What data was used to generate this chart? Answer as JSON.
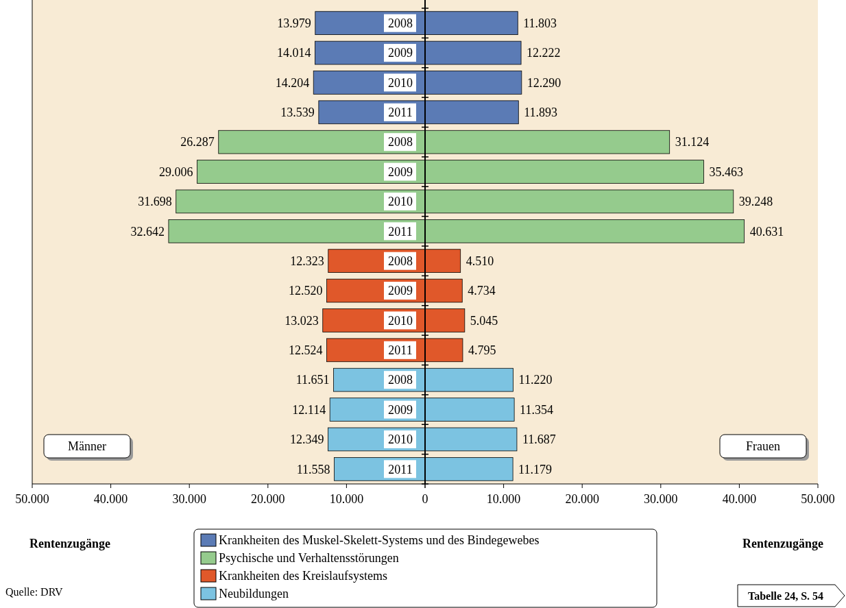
{
  "chart_data": [
    {
      "type": "bar",
      "orientation": "horizontal",
      "stacked": true,
      "xlabel": "Rentenzugänge",
      "categories": [
        "2008",
        "2009",
        "2010",
        "2011",
        "2008",
        "2009",
        "2010",
        "2011",
        "2008",
        "2009",
        "2010",
        "2011",
        "2008",
        "2009",
        "2010",
        "2011"
      ],
      "series": [
        {
          "color": "#5b7bb5",
          "values": [
            13979,
            14014,
            14204,
            13539,
            null,
            null,
            null,
            null,
            null,
            null,
            null,
            null,
            null,
            null,
            null,
            null
          ],
          "value_labels": [
            "13.979",
            "14.014",
            "14.204",
            "13.539",
            null,
            null,
            null,
            null,
            null,
            null,
            null,
            null,
            null,
            null,
            null,
            null
          ]
        },
        {
          "color": "#95cb8d",
          "values": [
            null,
            null,
            null,
            null,
            26287,
            29006,
            31698,
            32642,
            null,
            null,
            null,
            null,
            null,
            null,
            null,
            null
          ],
          "value_labels": [
            null,
            null,
            null,
            null,
            "26.287",
            "29.006",
            "31.698",
            "32.642",
            null,
            null,
            null,
            null,
            null,
            null,
            null,
            null
          ]
        },
        {
          "color": "#e0582a",
          "values": [
            null,
            null,
            null,
            null,
            null,
            null,
            null,
            null,
            12323,
            12520,
            13023,
            12524,
            null,
            null,
            null,
            null
          ],
          "value_labels": [
            null,
            null,
            null,
            null,
            null,
            null,
            null,
            null,
            "12.323",
            "12.520",
            "13.023",
            "12.524",
            null,
            null,
            null,
            null
          ]
        },
        {
          "color": "#7cc3e1",
          "values": [
            null,
            null,
            null,
            null,
            null,
            null,
            null,
            null,
            null,
            null,
            null,
            null,
            11651,
            12114,
            12349,
            11558
          ],
          "value_labels": [
            null,
            null,
            null,
            null,
            null,
            null,
            null,
            null,
            null,
            null,
            null,
            null,
            "11.651",
            "12.114",
            "12.349",
            "11.558"
          ]
        }
      ],
      "xlim": [
        50000,
        0
      ],
      "xticks": [
        {
          "value": 50000,
          "label": "50.000"
        },
        {
          "value": 40000,
          "label": "40.000"
        },
        {
          "value": 30000,
          "label": "30.000"
        },
        {
          "value": 20000,
          "label": "20.000"
        },
        {
          "value": 10000,
          "label": "10.000"
        },
        0
      ],
      "annotations": [
        "Männer",
        "Quelle: DRV"
      ]
    },
    {
      "type": "bar",
      "orientation": "horizontal",
      "stacked": true,
      "xlabel": "Rentenzugänge",
      "categories": [
        null,
        null,
        null,
        null,
        null,
        null,
        null,
        null,
        null,
        null,
        null,
        null,
        null,
        null,
        null,
        null
      ],
      "series": [
        {
          "name": "Krankheiten des Muskel-Skelett-Systems und des Bindegewebes",
          "color": "#5b7bb5",
          "values": [
            11803,
            12222,
            12290,
            11893,
            null,
            null,
            null,
            null,
            null,
            null,
            null,
            null,
            null,
            null,
            null,
            null
          ],
          "value_labels": [
            "11.803",
            "12.222",
            "12.290",
            "11.893",
            null,
            null,
            null,
            null,
            null,
            null,
            null,
            null,
            null,
            null,
            null,
            null
          ]
        },
        {
          "name": "Psychische und Verhaltensstörungen",
          "color": "#95cb8d",
          "values": [
            null,
            null,
            null,
            null,
            31124,
            35463,
            39248,
            40631,
            null,
            null,
            null,
            null,
            null,
            null,
            null,
            null
          ],
          "value_labels": [
            null,
            null,
            null,
            null,
            "31.124",
            "35.463",
            "39.248",
            "40.631",
            null,
            null,
            null,
            null,
            null,
            null,
            null,
            null
          ]
        },
        {
          "name": "Krankheiten des Kreislaufsystems",
          "color": "#e0582a",
          "values": [
            null,
            null,
            null,
            null,
            null,
            null,
            null,
            null,
            4510,
            4734,
            5045,
            4795,
            null,
            null,
            null,
            null
          ],
          "value_labels": [
            null,
            null,
            null,
            null,
            null,
            null,
            null,
            null,
            "4.510",
            "4.734",
            "5.045",
            "4.795",
            null,
            null,
            null,
            null
          ]
        },
        {
          "name": "Neubildungen",
          "color": "#7cc3e1",
          "values": [
            null,
            null,
            null,
            null,
            null,
            null,
            null,
            null,
            null,
            null,
            null,
            null,
            11220,
            11354,
            11687,
            11179
          ],
          "value_labels": [
            null,
            null,
            null,
            null,
            null,
            null,
            null,
            null,
            null,
            null,
            null,
            null,
            "11.220",
            "11.354",
            "11.687",
            "11.179"
          ]
        }
      ],
      "xlim": [
        0,
        50000
      ],
      "xticks": [
        {
          "value": 0,
          "label": null
        },
        {
          "value": 10000,
          "label": "10.000"
        },
        {
          "value": 20000,
          "label": "20.000"
        },
        {
          "value": 30000,
          "label": "30.000"
        },
        {
          "value": 40000,
          "label": "40.000"
        },
        {
          "value": 50000,
          "label": "50.000"
        }
      ],
      "legend": "bottom",
      "annotations": [
        "Frauen",
        "Tabelle 24, S. 54"
      ]
    }
  ]
}
